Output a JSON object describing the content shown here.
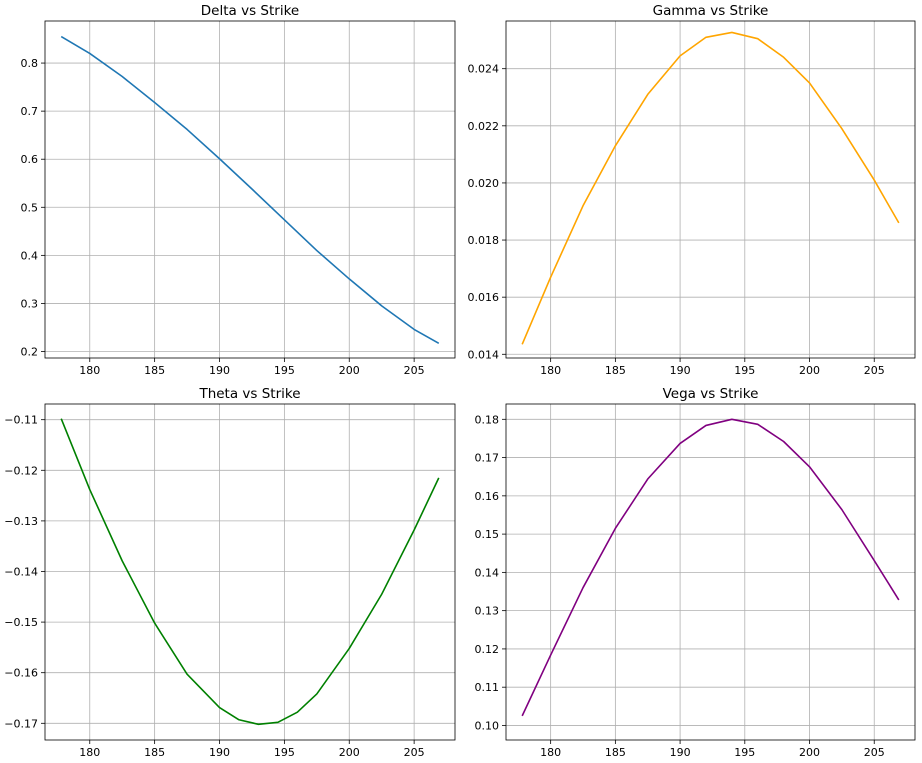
{
  "chart_data": [
    {
      "type": "line",
      "title": "Delta vs Strike",
      "xlabel": "",
      "ylabel": "",
      "xlim": [
        176.55,
        208.15
      ],
      "ylim": [
        0.1865,
        0.8875
      ],
      "x_ticks": [
        180,
        185,
        190,
        195,
        200,
        205
      ],
      "y_ticks": [
        0.2,
        0.3,
        0.4,
        0.5,
        0.6,
        0.7,
        0.8
      ],
      "y_tick_labels": [
        "0.2",
        "0.3",
        "0.4",
        "0.5",
        "0.6",
        "0.7",
        "0.8"
      ],
      "grid": true,
      "color": "#1f77b4",
      "series": [
        {
          "x": [
            177.8,
            180,
            182.5,
            185,
            187.5,
            190,
            192.5,
            195,
            197.5,
            200,
            202.5,
            205,
            206.9
          ],
          "y": [
            0.855,
            0.82,
            0.772,
            0.718,
            0.662,
            0.601,
            0.538,
            0.474,
            0.41,
            0.351,
            0.295,
            0.246,
            0.217
          ]
        }
      ]
    },
    {
      "type": "line",
      "title": "Gamma vs Strike",
      "xlabel": "",
      "ylabel": "",
      "xlim": [
        176.55,
        208.15
      ],
      "ylim": [
        0.01387,
        0.02567
      ],
      "x_ticks": [
        180,
        185,
        190,
        195,
        200,
        205
      ],
      "y_ticks": [
        0.014,
        0.016,
        0.018,
        0.02,
        0.022,
        0.024
      ],
      "y_tick_labels": [
        "0.014",
        "0.016",
        "0.018",
        "0.020",
        "0.022",
        "0.024"
      ],
      "grid": true,
      "color": "#ffa500",
      "series": [
        {
          "x": [
            177.8,
            180,
            182.5,
            185,
            187.5,
            190,
            192,
            194,
            196,
            198,
            200,
            202.5,
            205,
            206.9
          ],
          "y": [
            0.01435,
            0.0167,
            0.0192,
            0.0213,
            0.0231,
            0.02445,
            0.0251,
            0.02527,
            0.02505,
            0.0244,
            0.0235,
            0.0219,
            0.0201,
            0.0186
          ]
        }
      ]
    },
    {
      "type": "line",
      "title": "Theta vs Strike",
      "xlabel": "",
      "ylabel": "",
      "xlim": [
        176.55,
        208.15
      ],
      "ylim": [
        -0.1733,
        -0.1069
      ],
      "x_ticks": [
        180,
        185,
        190,
        195,
        200,
        205
      ],
      "y_ticks": [
        -0.17,
        -0.16,
        -0.15,
        -0.14,
        -0.13,
        -0.12,
        -0.11
      ],
      "y_tick_labels": [
        "−0.17",
        "−0.16",
        "−0.15",
        "−0.14",
        "−0.13",
        "−0.12",
        "−0.11"
      ],
      "grid": true,
      "color": "#008000",
      "series": [
        {
          "x": [
            177.8,
            180,
            182.5,
            185,
            187.5,
            190,
            191.5,
            193,
            194.5,
            196,
            197.5,
            200,
            202.5,
            205,
            206.9
          ],
          "y": [
            -0.1098,
            -0.1238,
            -0.1379,
            -0.1502,
            -0.1603,
            -0.1669,
            -0.1693,
            -0.1702,
            -0.1698,
            -0.1678,
            -0.1642,
            -0.1552,
            -0.1445,
            -0.1318,
            -0.1215
          ]
        }
      ]
    },
    {
      "type": "line",
      "title": "Vega vs Strike",
      "xlabel": "",
      "ylabel": "",
      "xlim": [
        176.55,
        208.15
      ],
      "ylim": [
        0.0962,
        0.184
      ],
      "x_ticks": [
        180,
        185,
        190,
        195,
        200,
        205
      ],
      "y_ticks": [
        0.1,
        0.11,
        0.12,
        0.13,
        0.14,
        0.15,
        0.16,
        0.17,
        0.18
      ],
      "y_tick_labels": [
        "0.10",
        "0.11",
        "0.12",
        "0.13",
        "0.14",
        "0.15",
        "0.16",
        "0.17",
        "0.18"
      ],
      "grid": true,
      "color": "#800080",
      "series": [
        {
          "x": [
            177.8,
            180,
            182.5,
            185,
            187.5,
            190,
            192,
            194,
            196,
            198,
            200,
            202.5,
            205,
            206.9
          ],
          "y": [
            0.1025,
            0.1184,
            0.136,
            0.1515,
            0.1644,
            0.1737,
            0.1784,
            0.18,
            0.1787,
            0.1742,
            0.1676,
            0.1564,
            0.1431,
            0.1328
          ]
        }
      ]
    }
  ]
}
